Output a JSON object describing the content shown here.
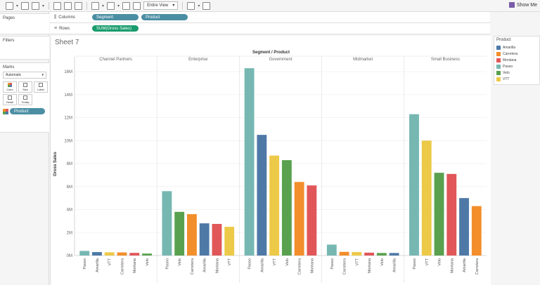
{
  "app": {
    "view_dropdown": "Entire View",
    "show_me": "Show Me"
  },
  "shelves": {
    "columns_label": "Columns",
    "columns_pills": [
      "Segment",
      "Product"
    ],
    "rows_label": "Rows",
    "rows_pills": [
      "SUM(Gross Sales)"
    ]
  },
  "left_panel": {
    "pages_title": "Pages",
    "filters_title": "Filters",
    "marks_title": "Marks",
    "marks_type": "Automatic",
    "mark_buttons": [
      "Color",
      "Size",
      "Label",
      "Detail",
      "Tooltip"
    ],
    "color_field": "Product"
  },
  "sheet": {
    "title": "Sheet 7"
  },
  "legend": {
    "title": "Product",
    "items": [
      {
        "label": "Amarilla",
        "color": "#4e79a7"
      },
      {
        "label": "Carretera",
        "color": "#f28e2b"
      },
      {
        "label": "Montana",
        "color": "#e15759"
      },
      {
        "label": "Paseo",
        "color": "#76b7b2"
      },
      {
        "label": "Velo",
        "color": "#59a14f"
      },
      {
        "label": "VTT",
        "color": "#edc948"
      }
    ]
  },
  "chart_data": {
    "type": "bar",
    "title": "Segment / Product",
    "ylabel": "Gross Sales",
    "ylim": [
      0,
      16.8
    ],
    "yticks": [
      0,
      2,
      4,
      6,
      8,
      10,
      12,
      14,
      16
    ],
    "ytick_labels": [
      "0M",
      "2M",
      "4M",
      "6M",
      "8M",
      "10M",
      "12M",
      "14M",
      "16M"
    ],
    "colors": {
      "Amarilla": "#4e79a7",
      "Carretera": "#f28e2b",
      "Montana": "#e15759",
      "Paseo": "#76b7b2",
      "Velo": "#59a14f",
      "VTT": "#edc948"
    },
    "segments": [
      {
        "name": "Channel Partners",
        "bars": [
          {
            "product": "Paseo",
            "value": 0.4
          },
          {
            "product": "Amarilla",
            "value": 0.3
          },
          {
            "product": "VTT",
            "value": 0.28
          },
          {
            "product": "Carretera",
            "value": 0.27
          },
          {
            "product": "Montana",
            "value": 0.23
          },
          {
            "product": "Velo",
            "value": 0.17
          }
        ]
      },
      {
        "name": "Enterprise",
        "bars": [
          {
            "product": "Paseo",
            "value": 5.6
          },
          {
            "product": "Velo",
            "value": 3.8
          },
          {
            "product": "Carretera",
            "value": 3.6
          },
          {
            "product": "Amarilla",
            "value": 2.8
          },
          {
            "product": "Montana",
            "value": 2.75
          },
          {
            "product": "VTT",
            "value": 2.5
          }
        ]
      },
      {
        "name": "Government",
        "bars": [
          {
            "product": "Paseo",
            "value": 16.3
          },
          {
            "product": "Amarilla",
            "value": 10.5
          },
          {
            "product": "VTT",
            "value": 8.7
          },
          {
            "product": "Velo",
            "value": 8.3
          },
          {
            "product": "Carretera",
            "value": 6.4
          },
          {
            "product": "Montana",
            "value": 6.1
          }
        ]
      },
      {
        "name": "Midmarket",
        "bars": [
          {
            "product": "Paseo",
            "value": 0.95
          },
          {
            "product": "Carretera",
            "value": 0.32
          },
          {
            "product": "VTT",
            "value": 0.3
          },
          {
            "product": "Montana",
            "value": 0.25
          },
          {
            "product": "Velo",
            "value": 0.22
          },
          {
            "product": "Amarilla",
            "value": 0.22
          }
        ]
      },
      {
        "name": "Small Business",
        "bars": [
          {
            "product": "Paseo",
            "value": 12.3
          },
          {
            "product": "VTT",
            "value": 10.0
          },
          {
            "product": "Velo",
            "value": 7.2
          },
          {
            "product": "Montana",
            "value": 7.1
          },
          {
            "product": "Amarilla",
            "value": 5.0
          },
          {
            "product": "Carretera",
            "value": 4.3
          }
        ]
      }
    ]
  }
}
